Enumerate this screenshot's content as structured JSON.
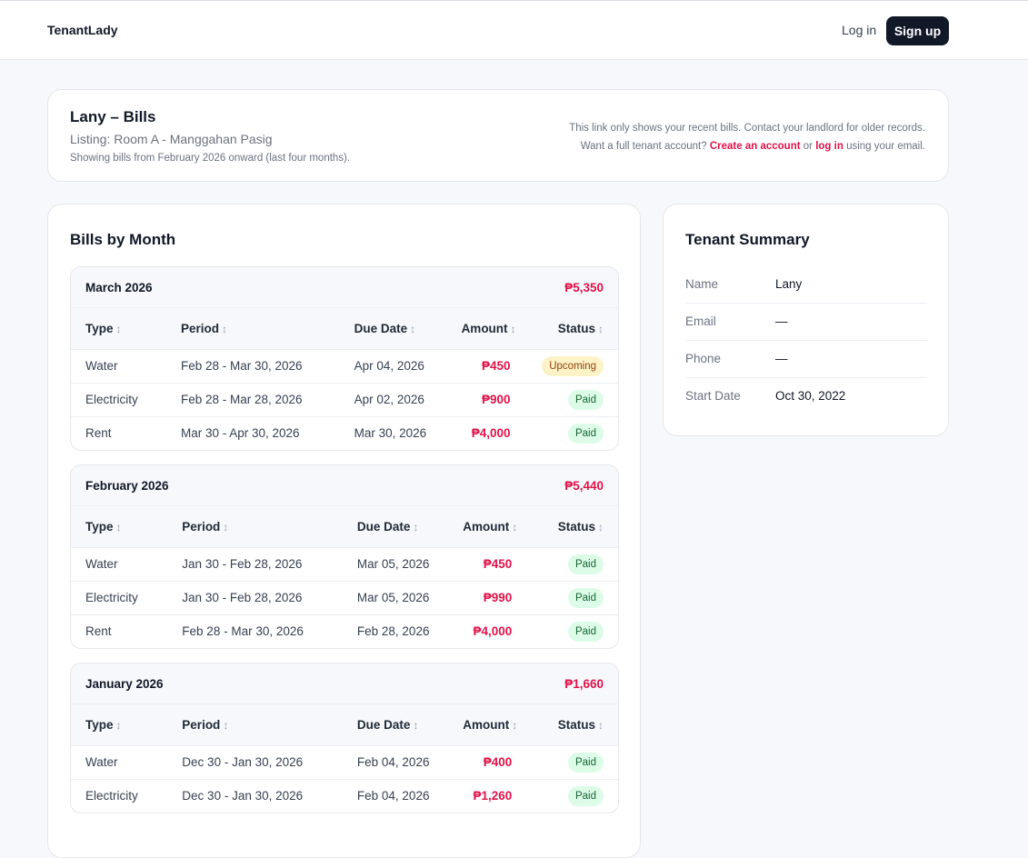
{
  "nav": {
    "brand": "TenantLady",
    "login": "Log in",
    "signup": "Sign up"
  },
  "header": {
    "title": "Lany – Bills",
    "listing": "Listing: Room A - Manggahan Pasig",
    "range": "Showing bills from February 2026 onward (last four months).",
    "note_line1": "This link only shows your recent bills. Contact your landlord for older records.",
    "note_line2_prefix": "Want a full tenant account?",
    "create_account": "Create an account",
    "or": "or",
    "log_in": "log in",
    "note_line2_suffix": "using your email."
  },
  "bills": {
    "title": "Bills by Month",
    "columns": {
      "type": "Type",
      "period": "Period",
      "due_date": "Due Date",
      "amount": "Amount",
      "status": "Status"
    },
    "sort_icon": "↕",
    "months": [
      {
        "name": "March 2026",
        "total": "₱5,350",
        "rows": [
          {
            "type": "Water",
            "period": "Feb 28 - Mar 30, 2026",
            "due": "Apr 04, 2026",
            "amount": "₱450",
            "status": "Upcoming"
          },
          {
            "type": "Electricity",
            "period": "Feb 28 - Mar 28, 2026",
            "due": "Apr 02, 2026",
            "amount": "₱900",
            "status": "Paid"
          },
          {
            "type": "Rent",
            "period": "Mar 30 - Apr 30, 2026",
            "due": "Mar 30, 2026",
            "amount": "₱4,000",
            "status": "Paid"
          }
        ]
      },
      {
        "name": "February 2026",
        "total": "₱5,440",
        "rows": [
          {
            "type": "Water",
            "period": "Jan 30 - Feb 28, 2026",
            "due": "Mar 05, 2026",
            "amount": "₱450",
            "status": "Paid"
          },
          {
            "type": "Electricity",
            "period": "Jan 30 - Feb 28, 2026",
            "due": "Mar 05, 2026",
            "amount": "₱990",
            "status": "Paid"
          },
          {
            "type": "Rent",
            "period": "Feb 28 - Mar 30, 2026",
            "due": "Feb 28, 2026",
            "amount": "₱4,000",
            "status": "Paid"
          }
        ]
      },
      {
        "name": "January 2026",
        "total": "₱1,660",
        "rows": [
          {
            "type": "Water",
            "period": "Dec 30 - Jan 30, 2026",
            "due": "Feb 04, 2026",
            "amount": "₱400",
            "status": "Paid"
          },
          {
            "type": "Electricity",
            "period": "Dec 30 - Jan 30, 2026",
            "due": "Feb 04, 2026",
            "amount": "₱1,260",
            "status": "Paid"
          }
        ]
      }
    ]
  },
  "summary": {
    "title": "Tenant Summary",
    "rows": [
      {
        "label": "Name",
        "value": "Lany"
      },
      {
        "label": "Email",
        "value": "—"
      },
      {
        "label": "Phone",
        "value": "—"
      },
      {
        "label": "Start Date",
        "value": "Oct 30, 2022"
      }
    ]
  },
  "colors": {
    "accent": "#e0134a",
    "dark": "#111827",
    "paid_bg": "#dcfce7",
    "upcoming_bg": "#fef3c7"
  }
}
